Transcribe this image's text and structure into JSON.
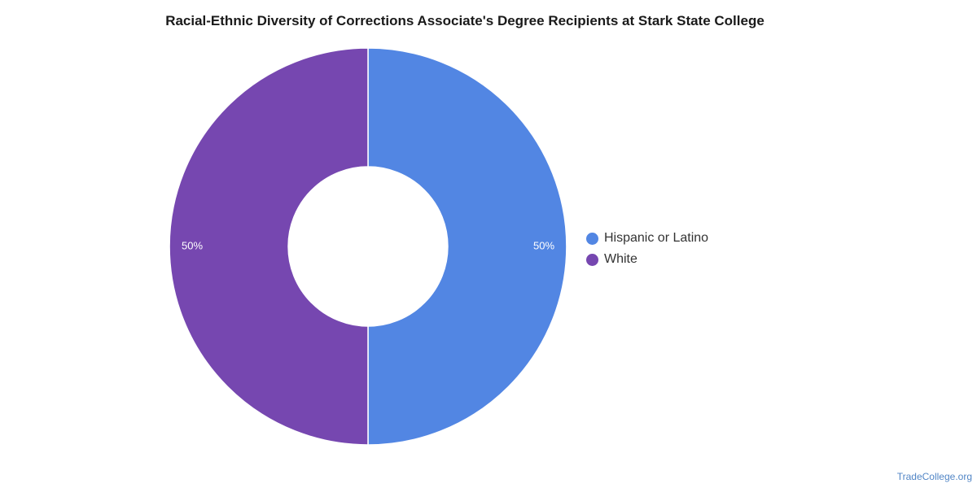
{
  "chart_data": {
    "type": "pie",
    "title": "Racial-Ethnic Diversity of Corrections Associate's Degree Recipients at Stark State College",
    "categories": [
      "Hispanic or Latino",
      "White"
    ],
    "values": [
      50,
      50
    ],
    "labels": [
      "50%",
      "50%"
    ],
    "colors": [
      "#5286e3",
      "#7647b0"
    ],
    "donut": true,
    "legend_position": "right"
  },
  "legend": {
    "items": [
      {
        "label": "Hispanic or Latino",
        "color": "#5286e3"
      },
      {
        "label": "White",
        "color": "#7647b0"
      }
    ]
  },
  "credit": {
    "text": "TradeCollege.org",
    "color": "#5286c6"
  }
}
